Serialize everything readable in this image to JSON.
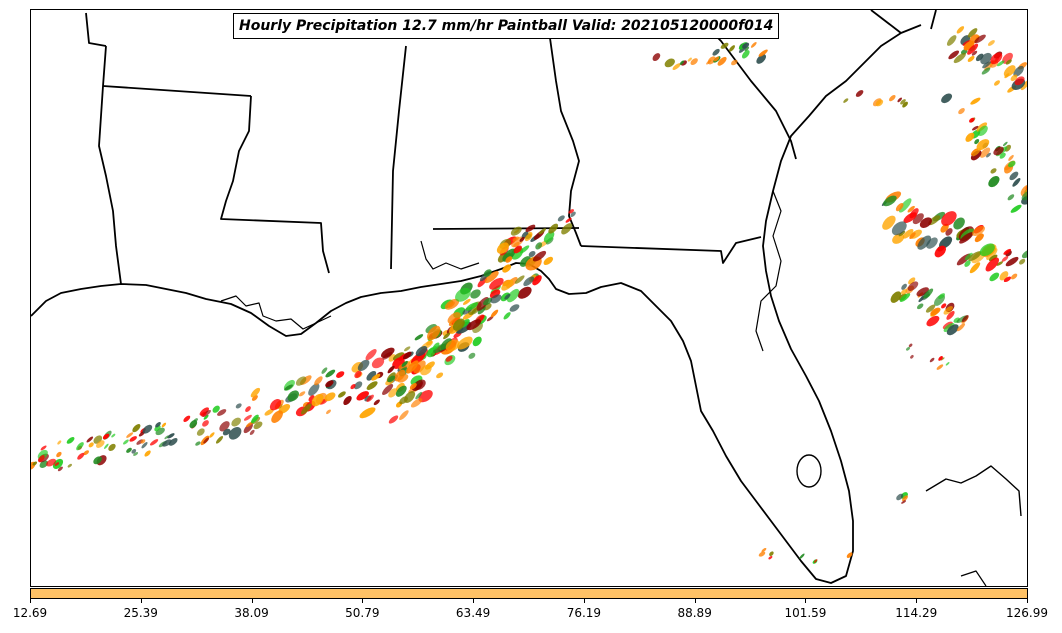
{
  "title": "Hourly Precipitation 12.7 mm/hr Paintball Valid: 202105120000f014",
  "colorbar": {
    "color": "#ffc266",
    "ticks": [
      "12.69",
      "25.39",
      "38.09",
      "50.79",
      "63.49",
      "76.19",
      "88.89",
      "101.59",
      "114.29",
      "126.99"
    ]
  },
  "map": {
    "region": "gulf-coast-southeast-us",
    "coastline_color": "#000000",
    "member_colors": [
      "#ff0000",
      "#ff8000",
      "#808000",
      "#228b22",
      "#22cc22",
      "#8b0000",
      "#ffa500",
      "#2f4f4f"
    ]
  }
}
